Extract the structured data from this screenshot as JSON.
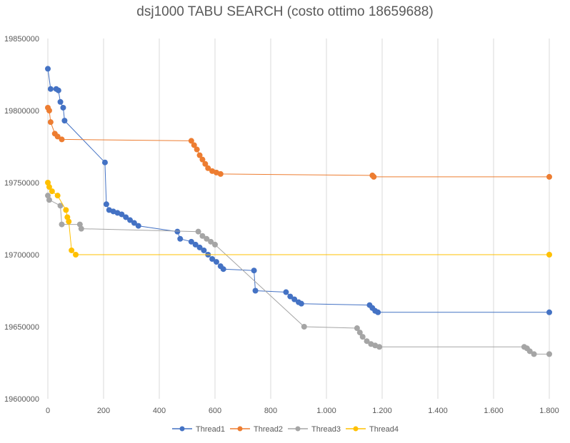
{
  "chart_data": {
    "type": "scatter",
    "title": "dsj1000 TABU SEARCH (costo ottimo 18659688)",
    "xlabel": "",
    "ylabel": "",
    "xlim": [
      0,
      1800
    ],
    "ylim": [
      19600000,
      19850000
    ],
    "x_ticks": [
      0,
      200,
      400,
      600,
      800,
      1000,
      1200,
      1400,
      1600,
      1800
    ],
    "x_tick_labels": [
      "0",
      "200",
      "400",
      "600",
      "800",
      "1.000",
      "1.200",
      "1.400",
      "1.600",
      "1.800"
    ],
    "y_ticks": [
      19600000,
      19650000,
      19700000,
      19750000,
      19800000,
      19850000
    ],
    "y_tick_labels": [
      "19600000",
      "19650000",
      "19700000",
      "19750000",
      "19800000",
      "19850000"
    ],
    "grid": "vertical",
    "legend_position": "bottom",
    "series": [
      {
        "name": "Thread1",
        "color": "#4472C4",
        "points": [
          [
            0,
            19829000
          ],
          [
            10,
            19815000
          ],
          [
            30,
            19815000
          ],
          [
            38,
            19814000
          ],
          [
            45,
            19806000
          ],
          [
            55,
            19802000
          ],
          [
            60,
            19793000
          ],
          [
            205,
            19764000
          ],
          [
            210,
            19735000
          ],
          [
            220,
            19731000
          ],
          [
            235,
            19730000
          ],
          [
            250,
            19729000
          ],
          [
            265,
            19728000
          ],
          [
            280,
            19726000
          ],
          [
            295,
            19724000
          ],
          [
            310,
            19722000
          ],
          [
            325,
            19720000
          ],
          [
            465,
            19716000
          ],
          [
            475,
            19711000
          ],
          [
            515,
            19709000
          ],
          [
            530,
            19707000
          ],
          [
            545,
            19705000
          ],
          [
            560,
            19703000
          ],
          [
            575,
            19700000
          ],
          [
            590,
            19697000
          ],
          [
            605,
            19695000
          ],
          [
            620,
            19692000
          ],
          [
            630,
            19690000
          ],
          [
            740,
            19689000
          ],
          [
            745,
            19675000
          ],
          [
            855,
            19674000
          ],
          [
            870,
            19671000
          ],
          [
            885,
            19669000
          ],
          [
            900,
            19667000
          ],
          [
            910,
            19666000
          ],
          [
            1155,
            19665000
          ],
          [
            1165,
            19663000
          ],
          [
            1175,
            19661000
          ],
          [
            1185,
            19660000
          ],
          [
            1800,
            19660000
          ]
        ]
      },
      {
        "name": "Thread2",
        "color": "#ED7D31",
        "points": [
          [
            0,
            19802000
          ],
          [
            5,
            19800000
          ],
          [
            10,
            19792000
          ],
          [
            25,
            19784000
          ],
          [
            35,
            19782000
          ],
          [
            50,
            19780000
          ],
          [
            515,
            19779000
          ],
          [
            525,
            19776000
          ],
          [
            535,
            19773000
          ],
          [
            545,
            19769000
          ],
          [
            555,
            19766000
          ],
          [
            565,
            19763000
          ],
          [
            575,
            19760000
          ],
          [
            590,
            19758000
          ],
          [
            605,
            19757000
          ],
          [
            620,
            19756000
          ],
          [
            1165,
            19755000
          ],
          [
            1170,
            19754000
          ],
          [
            1800,
            19754000
          ]
        ]
      },
      {
        "name": "Thread3",
        "color": "#A5A5A5",
        "points": [
          [
            0,
            19741000
          ],
          [
            5,
            19738000
          ],
          [
            45,
            19734000
          ],
          [
            50,
            19721000
          ],
          [
            115,
            19721000
          ],
          [
            120,
            19718000
          ],
          [
            540,
            19716000
          ],
          [
            555,
            19713000
          ],
          [
            570,
            19711000
          ],
          [
            585,
            19709000
          ],
          [
            600,
            19707000
          ],
          [
            920,
            19650000
          ],
          [
            1110,
            19649000
          ],
          [
            1120,
            19646000
          ],
          [
            1130,
            19643000
          ],
          [
            1145,
            19640000
          ],
          [
            1160,
            19638000
          ],
          [
            1175,
            19637000
          ],
          [
            1190,
            19636000
          ],
          [
            1710,
            19636000
          ],
          [
            1720,
            19635000
          ],
          [
            1730,
            19633000
          ],
          [
            1745,
            19631000
          ],
          [
            1800,
            19631000
          ]
        ]
      },
      {
        "name": "Thread4",
        "color": "#FFC000",
        "points": [
          [
            0,
            19750000
          ],
          [
            5,
            19747000
          ],
          [
            15,
            19744000
          ],
          [
            35,
            19741000
          ],
          [
            65,
            19731000
          ],
          [
            70,
            19726000
          ],
          [
            75,
            19723000
          ],
          [
            85,
            19703000
          ],
          [
            100,
            19700000
          ],
          [
            1800,
            19700000
          ]
        ]
      }
    ]
  }
}
